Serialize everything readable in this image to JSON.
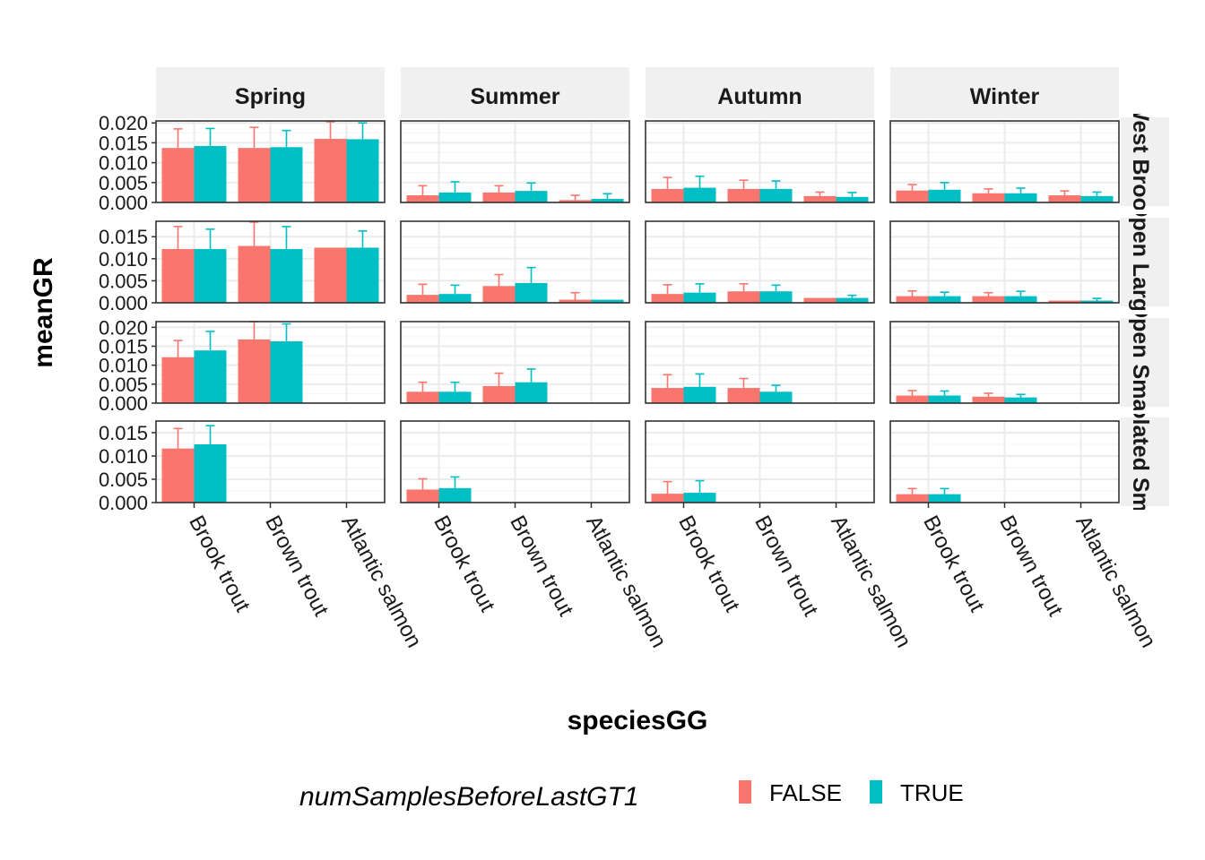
{
  "chart_data": {
    "type": "bar",
    "xlabel": "speciesGG",
    "ylabel": "meanGR",
    "categories": [
      "Brook trout",
      "Brown trout",
      "Atlantic salmon"
    ],
    "columns": [
      "Spring",
      "Summer",
      "Autumn",
      "Winter"
    ],
    "rows": [
      {
        "label": "West Brook",
        "ylim": [
          0,
          0.0205
        ],
        "yticks": [
          "0.000",
          "0.005",
          "0.010",
          "0.015",
          "0.020"
        ]
      },
      {
        "label": "Open Large",
        "ylim": [
          0,
          0.0185
        ],
        "yticks": [
          "0.000",
          "0.005",
          "0.010",
          "0.015"
        ]
      },
      {
        "label": "Open Small",
        "ylim": [
          0,
          0.0215
        ],
        "yticks": [
          "0.000",
          "0.005",
          "0.010",
          "0.015",
          "0.020"
        ]
      },
      {
        "label": "Isolated Small",
        "ylim": [
          0,
          0.0175
        ],
        "yticks": [
          "0.000",
          "0.005",
          "0.010",
          "0.015"
        ]
      }
    ],
    "legend": {
      "title": "numSamplesBeforeLastGT1",
      "position": "bottom",
      "entries": [
        {
          "label": "FALSE",
          "color": "#F8766D"
        },
        {
          "label": "TRUE",
          "color": "#00BFC4"
        }
      ]
    },
    "grid": true,
    "series": [
      {
        "name": "FALSE",
        "color": "#F8766D",
        "values": [
          [
            [
              0.0137,
              0.0185
            ],
            [
              0.0137,
              0.0189
            ],
            [
              0.016,
              0.0203
            ]
          ],
          [
            [
              0.0122,
              0.0173
            ],
            [
              0.0129,
              0.0183
            ],
            [
              0.0125,
              0.0125
            ]
          ],
          [
            [
              0.0121,
              0.0165
            ],
            [
              0.0168,
              0.0215
            ],
            null
          ],
          [
            [
              0.0116,
              0.0159
            ],
            null,
            null
          ]
        ]
      },
      {
        "name": "TRUE",
        "color": "#00BFC4",
        "values": [
          [
            [
              0.0142,
              0.0186
            ],
            [
              0.0139,
              0.0181
            ],
            [
              0.0159,
              0.02
            ]
          ],
          [
            [
              0.0122,
              0.0167
            ],
            [
              0.0122,
              0.0173
            ],
            [
              0.0125,
              0.0163
            ]
          ],
          [
            [
              0.0139,
              0.0189
            ],
            [
              0.0163,
              0.0209
            ],
            null
          ],
          [
            [
              0.0125,
              0.0165
            ],
            null,
            null
          ]
        ]
      }
    ],
    "panels": [
      [
        null,
        {
          "FALSE": [
            [
              0.0018,
              0.0042
            ],
            [
              0.0025,
              0.0042
            ],
            [
              0.0006,
              0.0018
            ]
          ],
          "TRUE": [
            [
              0.0025,
              0.0052
            ],
            [
              0.0029,
              0.0049
            ],
            [
              0.0009,
              0.0022
            ]
          ]
        },
        {
          "FALSE": [
            [
              0.0034,
              0.0063
            ],
            [
              0.0034,
              0.0056
            ],
            [
              0.0016,
              0.0026
            ]
          ],
          "TRUE": [
            [
              0.0037,
              0.0066
            ],
            [
              0.0034,
              0.0054
            ],
            [
              0.0014,
              0.0025
            ]
          ]
        },
        {
          "FALSE": [
            [
              0.003,
              0.0045
            ],
            [
              0.0023,
              0.0034
            ],
            [
              0.0018,
              0.0029
            ]
          ],
          "TRUE": [
            [
              0.0032,
              0.005
            ],
            [
              0.0023,
              0.0036
            ],
            [
              0.0016,
              0.0026
            ]
          ]
        }
      ],
      [
        null,
        {
          "FALSE": [
            [
              0.0018,
              0.0042
            ],
            [
              0.0038,
              0.0064
            ],
            [
              0.0007,
              0.0023
            ]
          ],
          "TRUE": [
            [
              0.002,
              0.004
            ],
            [
              0.0045,
              0.008
            ],
            [
              0.0007,
              0.0007
            ]
          ]
        },
        {
          "FALSE": [
            [
              0.002,
              0.0041
            ],
            [
              0.0026,
              0.0043
            ],
            [
              0.0011,
              0.0011
            ]
          ],
          "TRUE": [
            [
              0.0023,
              0.0043
            ],
            [
              0.0026,
              0.004
            ],
            [
              0.0011,
              0.0017
            ]
          ]
        },
        {
          "FALSE": [
            [
              0.0015,
              0.0027
            ],
            [
              0.0015,
              0.0023
            ],
            [
              0.0005,
              0.0005
            ]
          ],
          "TRUE": [
            [
              0.0015,
              0.0024
            ],
            [
              0.0015,
              0.0026
            ],
            [
              0.0005,
              0.001
            ]
          ]
        }
      ],
      [
        null,
        {
          "FALSE": [
            [
              0.003,
              0.0055
            ],
            [
              0.0045,
              0.0079
            ],
            null
          ],
          "TRUE": [
            [
              0.003,
              0.0055
            ],
            [
              0.0055,
              0.009
            ],
            null
          ]
        },
        {
          "FALSE": [
            [
              0.004,
              0.0075
            ],
            [
              0.004,
              0.0065
            ],
            null
          ],
          "TRUE": [
            [
              0.0043,
              0.0077
            ],
            [
              0.003,
              0.0047
            ],
            null
          ]
        },
        {
          "FALSE": [
            [
              0.002,
              0.0033
            ],
            [
              0.0017,
              0.0026
            ],
            null
          ],
          "TRUE": [
            [
              0.002,
              0.0032
            ],
            [
              0.0015,
              0.0023
            ],
            null
          ]
        }
      ],
      [
        null,
        {
          "FALSE": [
            [
              0.0028,
              0.0051
            ],
            null,
            null
          ],
          "TRUE": [
            [
              0.0031,
              0.0055
            ],
            null,
            null
          ]
        },
        {
          "FALSE": [
            [
              0.0019,
              0.0045
            ],
            null,
            null
          ],
          "TRUE": [
            [
              0.0021,
              0.0047
            ],
            null,
            null
          ]
        },
        {
          "FALSE": [
            [
              0.0018,
              0.003
            ],
            null,
            null
          ],
          "TRUE": [
            [
              0.0018,
              0.003
            ],
            null,
            null
          ]
        }
      ]
    ]
  }
}
